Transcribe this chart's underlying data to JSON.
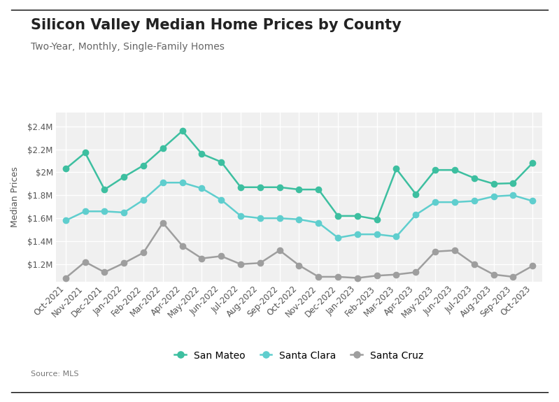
{
  "title": "Silicon Valley Median Home Prices by County",
  "subtitle": "Two-Year, Monthly, Single-Family Homes",
  "source": "Source: MLS",
  "ylabel": "Median Prices",
  "background_color": "#ffffff",
  "plot_background": "#f0f0f0",
  "grid_color": "#ffffff",
  "ylim": [
    1050000,
    2520000
  ],
  "yticks": [
    1200000,
    1400000,
    1600000,
    1800000,
    2000000,
    2200000,
    2400000
  ],
  "ytick_labels": [
    "$1.2M",
    "$1.4M",
    "$1.6M",
    "$1.8M",
    "$2M",
    "$2.2M",
    "$2.4M"
  ],
  "categories": [
    "Oct-2021",
    "Nov-2021",
    "Dec-2021",
    "Jan-2022",
    "Feb-2022",
    "Mar-2022",
    "Apr-2022",
    "May-2022",
    "Jun-2022",
    "Jul-2022",
    "Aug-2022",
    "Sep-2022",
    "Oct-2022",
    "Nov-2022",
    "Dec-2022",
    "Jan-2023",
    "Feb-2023",
    "Mar-2023",
    "Apr-2023",
    "May-2023",
    "Jun-2023",
    "Jul-2023",
    "Aug-2023",
    "Sep-2023",
    "Oct-2023"
  ],
  "san_mateo": [
    2030000,
    2170000,
    1850000,
    1960000,
    2060000,
    2210000,
    2360000,
    2160000,
    2090000,
    1870000,
    1870000,
    1870000,
    1850000,
    1850000,
    1620000,
    1620000,
    1590000,
    2030000,
    1810000,
    2020000,
    2020000,
    1950000,
    1900000,
    1905000,
    2080000
  ],
  "santa_clara": [
    1580000,
    1660000,
    1660000,
    1650000,
    1760000,
    1910000,
    1910000,
    1860000,
    1760000,
    1620000,
    1600000,
    1600000,
    1590000,
    1560000,
    1430000,
    1460000,
    1460000,
    1440000,
    1630000,
    1740000,
    1740000,
    1750000,
    1790000,
    1800000,
    1750000
  ],
  "santa_cruz": [
    1080000,
    1220000,
    1130000,
    1210000,
    1300000,
    1560000,
    1360000,
    1250000,
    1270000,
    1200000,
    1210000,
    1320000,
    1190000,
    1090000,
    1090000,
    1080000,
    1100000,
    1110000,
    1130000,
    1310000,
    1320000,
    1200000,
    1110000,
    1090000,
    1185000
  ],
  "san_mateo_color": "#3dbfa0",
  "santa_clara_color": "#5fcece",
  "santa_cruz_color": "#9e9e9e",
  "line_width": 1.8,
  "marker_size": 6,
  "legend_labels": [
    "San Mateo",
    "Santa Clara",
    "Santa Cruz"
  ],
  "title_fontsize": 15,
  "subtitle_fontsize": 10,
  "tick_fontsize": 8.5,
  "ylabel_fontsize": 9
}
